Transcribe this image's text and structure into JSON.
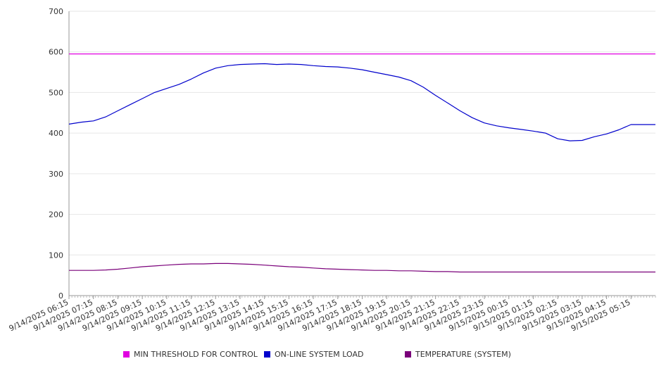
{
  "chart_data": {
    "type": "line",
    "ylim": [
      0,
      700
    ],
    "y_ticks": [
      0,
      100,
      200,
      300,
      400,
      500,
      600,
      700
    ],
    "grid": true,
    "legend_position": "bottom",
    "x_tick_labels": [
      "9/14/2025 06:15",
      "9/14/2025 07:15",
      "9/14/2025 08:15",
      "9/14/2025 09:15",
      "9/14/2025 10:15",
      "9/14/2025 11:15",
      "9/14/2025 12:15",
      "9/14/2025 13:15",
      "9/14/2025 14:15",
      "9/14/2025 15:15",
      "9/14/2025 16:15",
      "9/14/2025 17:15",
      "9/14/2025 18:15",
      "9/14/2025 19:15",
      "9/14/2025 20:15",
      "9/14/2025 21:15",
      "9/14/2025 22:15",
      "9/14/2025 23:15",
      "9/15/2025 00:15",
      "9/15/2025 01:15",
      "9/15/2025 02:15",
      "9/15/2025 03:15",
      "9/15/2025 04:15",
      "9/15/2025 05:15"
    ],
    "x": [
      "9/14/2025 06:15",
      "9/14/2025 06:45",
      "9/14/2025 07:15",
      "9/14/2025 07:45",
      "9/14/2025 08:15",
      "9/14/2025 08:45",
      "9/14/2025 09:15",
      "9/14/2025 09:45",
      "9/14/2025 10:15",
      "9/14/2025 10:45",
      "9/14/2025 11:15",
      "9/14/2025 11:45",
      "9/14/2025 12:15",
      "9/14/2025 12:45",
      "9/14/2025 13:15",
      "9/14/2025 13:45",
      "9/14/2025 14:15",
      "9/14/2025 14:45",
      "9/14/2025 15:15",
      "9/14/2025 15:45",
      "9/14/2025 16:15",
      "9/14/2025 16:45",
      "9/14/2025 17:15",
      "9/14/2025 17:45",
      "9/14/2025 18:15",
      "9/14/2025 18:45",
      "9/14/2025 19:15",
      "9/14/2025 19:45",
      "9/14/2025 20:15",
      "9/14/2025 20:45",
      "9/14/2025 21:15",
      "9/14/2025 21:45",
      "9/14/2025 22:15",
      "9/14/2025 22:45",
      "9/14/2025 23:15",
      "9/14/2025 23:45",
      "9/15/2025 00:15",
      "9/15/2025 00:45",
      "9/15/2025 01:15",
      "9/15/2025 01:45",
      "9/15/2025 02:15",
      "9/15/2025 02:45",
      "9/15/2025 03:15",
      "9/15/2025 03:45",
      "9/15/2025 04:15",
      "9/15/2025 04:45",
      "9/15/2025 05:15",
      "9/15/2025 05:45",
      "9/15/2025 06:15"
    ],
    "series": [
      {
        "name": "MIN THRESHOLD FOR CONTROL",
        "color": "#e100e1",
        "values": [
          595,
          595,
          595,
          595,
          595,
          595,
          595,
          595,
          595,
          595,
          595,
          595,
          595,
          595,
          595,
          595,
          595,
          595,
          595,
          595,
          595,
          595,
          595,
          595,
          595,
          595,
          595,
          595,
          595,
          595,
          595,
          595,
          595,
          595,
          595,
          595,
          595,
          595,
          595,
          595,
          595,
          595,
          595,
          595,
          595,
          595,
          595,
          595,
          595
        ]
      },
      {
        "name": "ON-LINE SYSTEM LOAD",
        "color": "#0000cc",
        "values": [
          422,
          427,
          430,
          440,
          455,
          470,
          485,
          500,
          510,
          520,
          533,
          548,
          560,
          566,
          569,
          570,
          571,
          569,
          570,
          569,
          566,
          564,
          563,
          560,
          556,
          550,
          544,
          538,
          529,
          513,
          493,
          474,
          455,
          438,
          425,
          418,
          413,
          409,
          405,
          400,
          386,
          381,
          382,
          391,
          398,
          408,
          421,
          421,
          421
        ]
      },
      {
        "name": "TEMPERATURE (SYSTEM)",
        "color": "#7a007a",
        "values": [
          62,
          62,
          62,
          63,
          65,
          68,
          71,
          73,
          75,
          77,
          78,
          78,
          79,
          79,
          78,
          77,
          75,
          73,
          71,
          70,
          68,
          66,
          65,
          64,
          63,
          62,
          62,
          61,
          61,
          60,
          59,
          59,
          58,
          58,
          58,
          58,
          58,
          58,
          58,
          58,
          58,
          58,
          58,
          58,
          58,
          58,
          58,
          58,
          58
        ]
      }
    ]
  }
}
